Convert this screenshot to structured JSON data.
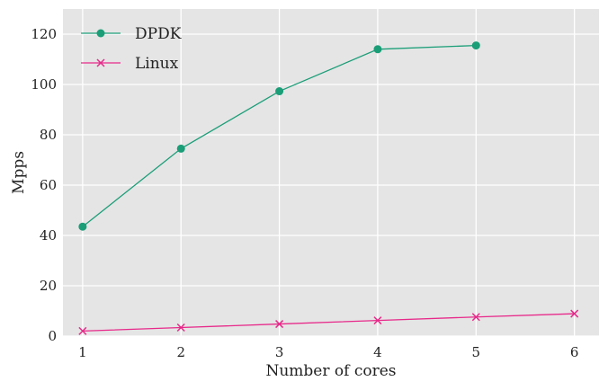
{
  "chart_data": {
    "type": "line",
    "title": "",
    "xlabel": "Number of cores",
    "ylabel": "Mpps",
    "x_ticks": [
      1,
      2,
      3,
      4,
      5,
      6
    ],
    "y_ticks": [
      0,
      20,
      40,
      60,
      80,
      100,
      120
    ],
    "xlim": [
      0.8,
      6.25
    ],
    "ylim": [
      0,
      130
    ],
    "grid": true,
    "legend_position": "top-left",
    "background_color": "#e5e5e5",
    "grid_color": "#ffffff",
    "series": [
      {
        "name": "DPDK",
        "color": "#1a9e77",
        "marker": "circle",
        "x": [
          1,
          2,
          3,
          4,
          5
        ],
        "values": [
          43.5,
          74.5,
          97.3,
          114.0,
          115.5
        ]
      },
      {
        "name": "Linux",
        "color": "#e7298a",
        "marker": "x",
        "x": [
          1,
          2,
          3,
          4,
          5,
          6
        ],
        "values": [
          2.0,
          3.4,
          4.8,
          6.2,
          7.6,
          8.9
        ]
      }
    ]
  }
}
